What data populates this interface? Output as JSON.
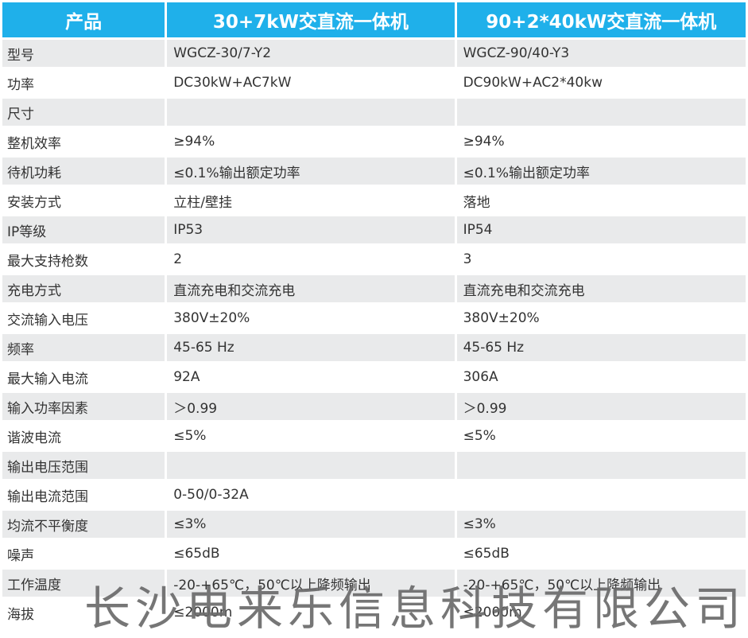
{
  "table": {
    "headers": [
      "产品",
      "30+7kW交直流一体机",
      "90+2*40kW交直流一体机"
    ],
    "rows": [
      [
        "型号",
        "WGCZ-30/7-Y2",
        "WGCZ-90/40-Y3"
      ],
      [
        "功率",
        "DC30kW+AC7kW",
        "DC90kW+AC2*40kw"
      ],
      [
        "尺寸",
        "",
        ""
      ],
      [
        "整机效率",
        "≥94%",
        "≥94%"
      ],
      [
        "待机功耗",
        "≤0.1%输出额定功率",
        "≤0.1%输出额定功率"
      ],
      [
        "安装方式",
        "立柱/壁挂",
        "落地"
      ],
      [
        "IP等级",
        "IP53",
        "IP54"
      ],
      [
        "最大支持枪数",
        "2",
        "3"
      ],
      [
        "充电方式",
        "直流充电和交流充电",
        "直流充电和交流充电"
      ],
      [
        "交流输入电压",
        "380V±20%",
        "380V±20%"
      ],
      [
        "频率",
        "45-65 Hz",
        "45-65 Hz"
      ],
      [
        "最大输入电流",
        "92A",
        "306A"
      ],
      [
        "输入功率因素",
        "＞0.99",
        "＞0.99"
      ],
      [
        "谐波电流",
        "≤5%",
        "≤5%"
      ],
      [
        "输出电压范围",
        "",
        ""
      ],
      [
        "输出电流范围",
        "0-50/0-32A",
        ""
      ],
      [
        "均流不平衡度",
        "≤3%",
        "≤3%"
      ],
      [
        "噪声",
        "≤65dB",
        "≤65dB"
      ],
      [
        "工作温度",
        "-20-+65℃，50℃以上降频输出",
        "-20-+65℃，50℃以上降频输出"
      ],
      [
        "海拔",
        "≤2000m",
        "≤2000m"
      ]
    ]
  },
  "watermark": "长沙电来乐信息科技有限公司",
  "colors": {
    "header_bg": "#1fb0ea",
    "header_text": "#ffffff",
    "row_alt_bg": "#e9eaeb",
    "row_bg": "#ffffff",
    "text": "#333333"
  }
}
